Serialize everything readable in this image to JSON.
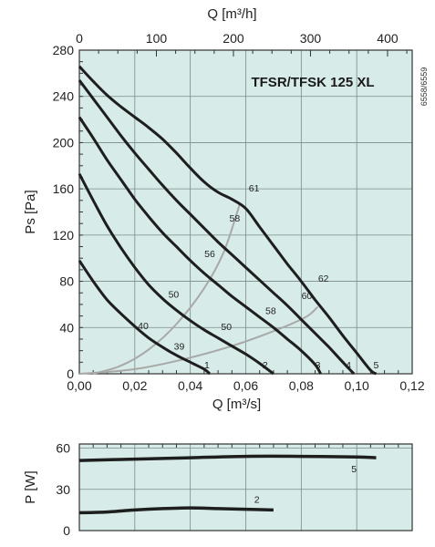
{
  "chart_data": [
    {
      "type": "line",
      "title": "TFSR/TFSK 125 XL",
      "figure_code": "6558/6559",
      "xlabel": "Q [m³/s]",
      "ylabel": "Ps [Pa]",
      "x2label": "Q [m³/h]",
      "xlim": [
        0,
        0.12
      ],
      "ylim": [
        0,
        280
      ],
      "x2lim": [
        0,
        432
      ],
      "xticks": [
        "0,00",
        "0,02",
        "0,04",
        "0,06",
        "0,08",
        "0,10",
        "0,12"
      ],
      "yticks": [
        "0",
        "40",
        "80",
        "120",
        "160",
        "200",
        "240",
        "280"
      ],
      "x2ticks": [
        "0",
        "100",
        "200",
        "300",
        "400"
      ],
      "grid": true,
      "background": "#d7ece8",
      "fan_curves": [
        {
          "name": "1",
          "points": [
            [
              0,
              98
            ],
            [
              0.005,
              80
            ],
            [
              0.01,
              64
            ],
            [
              0.015,
              52
            ],
            [
              0.02,
              41
            ],
            [
              0.025,
              31
            ],
            [
              0.03,
              23
            ],
            [
              0.035,
              16
            ],
            [
              0.04,
              10
            ],
            [
              0.045,
              4
            ],
            [
              0.047,
              0
            ]
          ]
        },
        {
          "name": "2",
          "points": [
            [
              0,
              173
            ],
            [
              0.005,
              150
            ],
            [
              0.01,
              128
            ],
            [
              0.015,
              109
            ],
            [
              0.02,
              92
            ],
            [
              0.025,
              77
            ],
            [
              0.03,
              65
            ],
            [
              0.035,
              55
            ],
            [
              0.04,
              46
            ],
            [
              0.045,
              38
            ],
            [
              0.05,
              31
            ],
            [
              0.055,
              24
            ],
            [
              0.06,
              17
            ],
            [
              0.065,
              9
            ],
            [
              0.07,
              0
            ]
          ]
        },
        {
          "name": "3",
          "points": [
            [
              0,
              222
            ],
            [
              0.005,
              204
            ],
            [
              0.01,
              185
            ],
            [
              0.015,
              168
            ],
            [
              0.02,
              151
            ],
            [
              0.025,
              136
            ],
            [
              0.03,
              122
            ],
            [
              0.035,
              110
            ],
            [
              0.04,
              98
            ],
            [
              0.045,
              87
            ],
            [
              0.05,
              77
            ],
            [
              0.055,
              67
            ],
            [
              0.06,
              58
            ],
            [
              0.065,
              49
            ],
            [
              0.07,
              40
            ],
            [
              0.075,
              30
            ],
            [
              0.08,
              20
            ],
            [
              0.085,
              8
            ],
            [
              0.087,
              0
            ]
          ]
        },
        {
          "name": "4",
          "points": [
            [
              0,
              254
            ],
            [
              0.005,
              238
            ],
            [
              0.01,
              222
            ],
            [
              0.015,
              206
            ],
            [
              0.02,
              191
            ],
            [
              0.025,
              177
            ],
            [
              0.03,
              163
            ],
            [
              0.035,
              150
            ],
            [
              0.04,
              138
            ],
            [
              0.045,
              126
            ],
            [
              0.05,
              114
            ],
            [
              0.055,
              103
            ],
            [
              0.06,
              92
            ],
            [
              0.065,
              81
            ],
            [
              0.07,
              70
            ],
            [
              0.075,
              59
            ],
            [
              0.08,
              47
            ],
            [
              0.085,
              35
            ],
            [
              0.09,
              23
            ],
            [
              0.095,
              10
            ],
            [
              0.099,
              0
            ]
          ]
        },
        {
          "name": "5",
          "points": [
            [
              0,
              266
            ],
            [
              0.005,
              253
            ],
            [
              0.01,
              241
            ],
            [
              0.015,
              231
            ],
            [
              0.02,
              222
            ],
            [
              0.025,
              213
            ],
            [
              0.03,
              203
            ],
            [
              0.035,
              191
            ],
            [
              0.04,
              178
            ],
            [
              0.045,
              166
            ],
            [
              0.05,
              157
            ],
            [
              0.055,
              151
            ],
            [
              0.06,
              143
            ],
            [
              0.065,
              127
            ],
            [
              0.07,
              111
            ],
            [
              0.075,
              95
            ],
            [
              0.08,
              80
            ],
            [
              0.085,
              64
            ],
            [
              0.09,
              49
            ],
            [
              0.095,
              33
            ],
            [
              0.1,
              18
            ],
            [
              0.105,
              3
            ],
            [
              0.107,
              0
            ]
          ]
        }
      ],
      "efficiency_curves": [
        {
          "name": "39",
          "points": [
            [
              0,
              0
            ],
            [
              0.02,
              4
            ],
            [
              0.04,
              14
            ],
            [
              0.06,
              28
            ],
            [
              0.08,
              47
            ],
            [
              0.086,
              58
            ]
          ]
        },
        {
          "name": "50",
          "points": [
            [
              0.005,
              0
            ],
            [
              0.015,
              7
            ],
            [
              0.025,
              21
            ],
            [
              0.035,
              43
            ],
            [
              0.045,
              74
            ],
            [
              0.052,
              105
            ],
            [
              0.058,
              148
            ]
          ]
        }
      ],
      "curve_labels": [
        {
          "text": "1",
          "x": 0.046,
          "y": 8
        },
        {
          "text": "2",
          "x": 0.067,
          "y": 8
        },
        {
          "text": "3",
          "x": 0.086,
          "y": 8
        },
        {
          "text": "4",
          "x": 0.097,
          "y": 8
        },
        {
          "text": "5",
          "x": 0.107,
          "y": 8
        },
        {
          "text": "39",
          "x": 0.036,
          "y": 24
        },
        {
          "text": "40",
          "x": 0.023,
          "y": 42
        },
        {
          "text": "50",
          "x": 0.034,
          "y": 69
        },
        {
          "text": "50",
          "x": 0.053,
          "y": 41
        },
        {
          "text": "56",
          "x": 0.047,
          "y": 104
        },
        {
          "text": "58",
          "x": 0.056,
          "y": 135
        },
        {
          "text": "58",
          "x": 0.069,
          "y": 55
        },
        {
          "text": "60",
          "x": 0.082,
          "y": 68
        },
        {
          "text": "61",
          "x": 0.063,
          "y": 161
        },
        {
          "text": "62",
          "x": 0.088,
          "y": 83
        }
      ]
    },
    {
      "type": "line",
      "xlabel": "",
      "ylabel": "P [W]",
      "xlim": [
        0,
        0.12
      ],
      "ylim": [
        0,
        63
      ],
      "yticks": [
        "0",
        "30",
        "60"
      ],
      "grid": true,
      "background": "#d7ece8",
      "series": [
        {
          "name": "5",
          "points": [
            [
              0,
              51
            ],
            [
              0.02,
              52
            ],
            [
              0.04,
              53
            ],
            [
              0.06,
              54
            ],
            [
              0.08,
              54
            ],
            [
              0.1,
              53.5
            ],
            [
              0.107,
              53
            ]
          ]
        },
        {
          "name": "2",
          "points": [
            [
              0,
              13
            ],
            [
              0.01,
              13.5
            ],
            [
              0.02,
              15
            ],
            [
              0.03,
              16
            ],
            [
              0.04,
              16.5
            ],
            [
              0.05,
              16
            ],
            [
              0.06,
              15.5
            ],
            [
              0.07,
              15
            ]
          ]
        }
      ],
      "curve_labels": [
        {
          "text": "5",
          "x": 0.099,
          "y": 45
        },
        {
          "text": "2",
          "x": 0.064,
          "y": 23
        }
      ]
    }
  ]
}
